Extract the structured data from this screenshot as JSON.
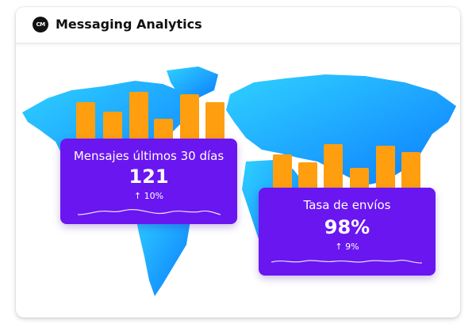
{
  "header": {
    "logo_text": "CM",
    "title": "Messaging Analytics"
  },
  "colors": {
    "accent": "#6a16f0",
    "bars": "#ff9f10",
    "map": "#1ea7ff"
  },
  "stats": [
    {
      "label": "Mensajes últimos 30 días",
      "value": "121",
      "trend": "↑ 10%"
    },
    {
      "label": "Tasa de envíos",
      "value": "98%",
      "trend": "↑ 9%"
    }
  ]
}
